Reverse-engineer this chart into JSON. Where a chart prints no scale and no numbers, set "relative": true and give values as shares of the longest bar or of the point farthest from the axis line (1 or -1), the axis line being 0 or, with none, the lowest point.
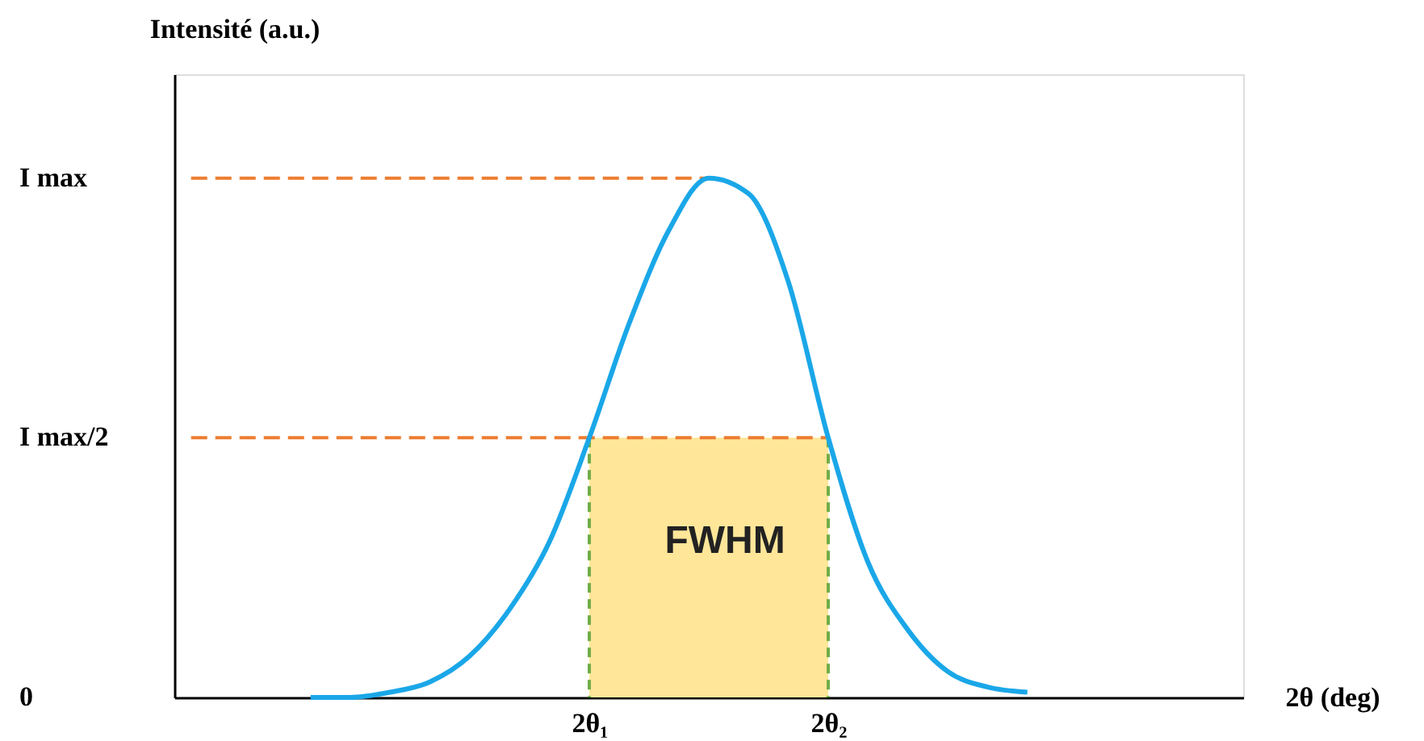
{
  "chart_data": {
    "type": "line",
    "relative": true,
    "xlabel": "2θ (deg)",
    "ylabel": "Intensité (a.u.)",
    "categories": [
      null,
      null,
      null,
      null,
      null,
      null,
      null,
      null,
      null,
      null,
      "2θ₁",
      null,
      null,
      null,
      null,
      null,
      "2θ₂",
      null,
      null,
      null,
      null,
      null,
      null,
      null,
      null,
      null,
      null
    ],
    "grid": false,
    "legend": false,
    "marker": "none",
    "series": [
      {
        "type": "area",
        "color": "#ffe699",
        "values": [
          null,
          null,
          null,
          null,
          null,
          null,
          null,
          null,
          null,
          null,
          0.5,
          0.5,
          0.5,
          0.5,
          0.5,
          0.5,
          0.5,
          null,
          null,
          null,
          null,
          null,
          null,
          null,
          null,
          null,
          null
        ]
      },
      {
        "color": "#ed7d31",
        "line_style": "dashed",
        "values": [
          1,
          1,
          1,
          1,
          1,
          1,
          1,
          1,
          1,
          1,
          1,
          1,
          1,
          1,
          null,
          null,
          null,
          null,
          null,
          null,
          null,
          null,
          null,
          null,
          null,
          null,
          null
        ]
      },
      {
        "color": "#ed7d31",
        "line_style": "dashed",
        "values": [
          0.5,
          0.5,
          0.5,
          0.5,
          0.5,
          0.5,
          0.5,
          0.5,
          0.5,
          0.5,
          0.5,
          0.5,
          0.5,
          0.5,
          0.5,
          0.5,
          0.5,
          null,
          null,
          null,
          null,
          null,
          null,
          null,
          null,
          null,
          null
        ]
      },
      {
        "color": "#1aa7e8",
        "line_style": "solid",
        "values": [
          null,
          null,
          null,
          0,
          0,
          0.01,
          0.03,
          0.08,
          0.17,
          0.3,
          0.5,
          0.72,
          0.9,
          1,
          0.97,
          0.8,
          0.5,
          0.26,
          0.13,
          0.05,
          0.02,
          0.01,
          null,
          null,
          null,
          null,
          null
        ]
      }
    ],
    "annotations": [
      "FWHM",
      "I max",
      "I max/2",
      "0"
    ]
  }
}
